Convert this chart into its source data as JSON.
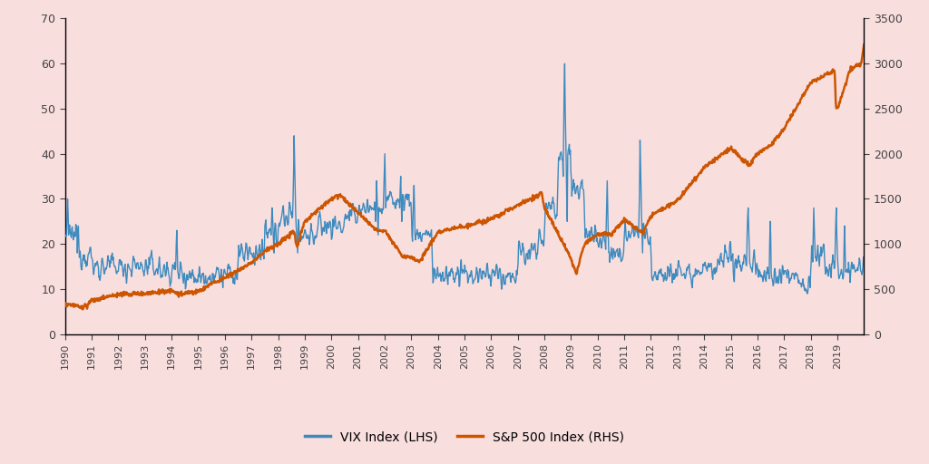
{
  "background_color": "#f9dede",
  "vix_color": "#3d8bbf",
  "sp500_color": "#cc5500",
  "legend_labels": [
    "VIX Index (LHS)",
    "S&P 500 Index (RHS)"
  ],
  "ylim_left": [
    0,
    70
  ],
  "ylim_right": [
    0,
    3500
  ],
  "yticks_left": [
    0,
    10,
    20,
    30,
    40,
    50,
    60,
    70
  ],
  "yticks_right": [
    0,
    500,
    1000,
    1500,
    2000,
    2500,
    3000,
    3500
  ],
  "xtick_labels": [
    "1990",
    "1991",
    "1992",
    "1993",
    "1994",
    "1995",
    "1996",
    "1997",
    "1998",
    "1999",
    "2000",
    "2001",
    "2002",
    "2003",
    "2004",
    "2005",
    "2006",
    "2007",
    "2008",
    "2009",
    "2010",
    "2011",
    "2012",
    "2013",
    "2014",
    "2015",
    "2016",
    "2017",
    "2018",
    "2019"
  ],
  "vix_linewidth": 1.0,
  "sp500_linewidth": 1.8,
  "tick_fontsize": 9,
  "legend_fontsize": 10
}
